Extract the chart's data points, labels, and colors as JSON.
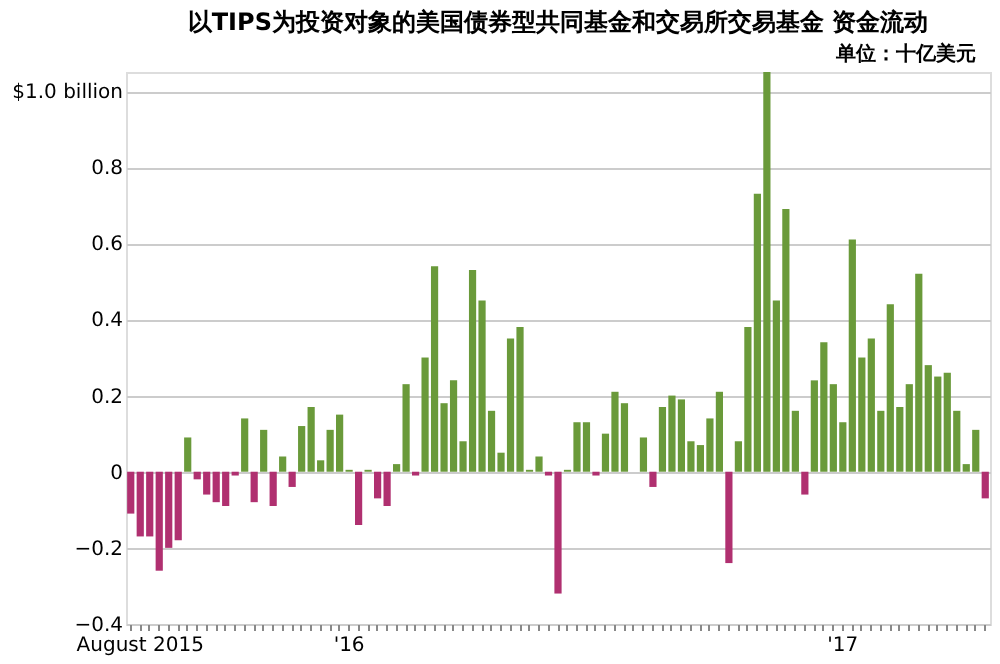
{
  "chart_data": {
    "type": "bar",
    "title": "以TIPS为投资对象的美国债券型共同基金和交易所交易基金 资金流动",
    "annotations": [
      "单位：十亿美元"
    ],
    "categories": [
      null,
      "August 2015",
      null,
      null,
      null,
      null,
      null,
      null,
      null,
      null,
      null,
      null,
      null,
      null,
      null,
      null,
      null,
      null,
      null,
      null,
      null,
      null,
      null,
      "'16",
      null,
      null,
      null,
      null,
      null,
      null,
      null,
      null,
      null,
      null,
      null,
      null,
      null,
      null,
      null,
      null,
      null,
      null,
      null,
      null,
      null,
      null,
      null,
      null,
      null,
      null,
      null,
      null,
      null,
      null,
      null,
      null,
      null,
      null,
      null,
      null,
      null,
      null,
      null,
      null,
      null,
      null,
      null,
      null,
      null,
      null,
      null,
      null,
      null,
      null,
      null,
      "'17",
      null,
      null,
      null,
      null,
      null,
      null,
      null,
      null,
      null,
      null,
      null,
      null,
      null,
      null,
      null
    ],
    "values": [
      -0.11,
      -0.17,
      -0.17,
      -0.26,
      -0.2,
      -0.18,
      0.09,
      -0.02,
      -0.06,
      -0.08,
      -0.09,
      -0.01,
      0.14,
      -0.08,
      0.11,
      -0.09,
      0.04,
      -0.04,
      0.12,
      0.17,
      0.03,
      0.11,
      0.15,
      0.005,
      -0.14,
      0.005,
      -0.07,
      -0.09,
      0.02,
      0.23,
      -0.01,
      0.3,
      0.54,
      0.18,
      0.24,
      0.08,
      0.53,
      0.45,
      0.16,
      0.05,
      0.35,
      0.38,
      0.005,
      0.04,
      -0.01,
      -0.32,
      0.005,
      0.13,
      0.13,
      -0.01,
      0.1,
      0.21,
      0.18,
      0,
      0.09,
      -0.04,
      0.17,
      0.2,
      0.19,
      0.08,
      0.07,
      0.14,
      0.21,
      -0.24,
      0.08,
      0.38,
      0.73,
      1.05,
      0.45,
      0.69,
      0.16,
      -0.06,
      0.24,
      0.34,
      0.23,
      0.13,
      0.61,
      0.3,
      0.35,
      0.16,
      0.44,
      0.17,
      0.23,
      0.52,
      0.28,
      0.25,
      0.26,
      0.16,
      0.02,
      0.11,
      -0.07
    ],
    "colors": [
      "#b03070",
      "#b03070",
      "#b03070",
      "#b03070",
      "#b03070",
      "#b03070",
      "#6a9a3a",
      "#b03070",
      "#b03070",
      "#b03070",
      "#b03070",
      "#b03070",
      "#6a9a3a",
      "#b03070",
      "#6a9a3a",
      "#b03070",
      "#6a9a3a",
      "#b03070",
      "#6a9a3a",
      "#6a9a3a",
      "#6a9a3a",
      "#6a9a3a",
      "#6a9a3a",
      "#6a9a3a",
      "#b03070",
      "#6a9a3a",
      "#b03070",
      "#b03070",
      "#6a9a3a",
      "#6a9a3a",
      "#b03070",
      "#6a9a3a",
      "#6a9a3a",
      "#6a9a3a",
      "#6a9a3a",
      "#6a9a3a",
      "#6a9a3a",
      "#6a9a3a",
      "#6a9a3a",
      "#6a9a3a",
      "#6a9a3a",
      "#6a9a3a",
      "#6a9a3a",
      "#6a9a3a",
      "#b03070",
      "#b03070",
      "#6a9a3a",
      "#6a9a3a",
      "#6a9a3a",
      "#b03070",
      "#6a9a3a",
      "#6a9a3a",
      "#6a9a3a",
      "#6a9a3a",
      "#6a9a3a",
      "#b03070",
      "#6a9a3a",
      "#6a9a3a",
      "#6a9a3a",
      "#6a9a3a",
      "#6a9a3a",
      "#6a9a3a",
      "#6a9a3a",
      "#b03070",
      "#6a9a3a",
      "#6a9a3a",
      "#6a9a3a",
      "#6a9a3a",
      "#6a9a3a",
      "#6a9a3a",
      "#6a9a3a",
      "#b03070",
      "#6a9a3a",
      "#6a9a3a",
      "#6a9a3a",
      "#6a9a3a",
      "#6a9a3a",
      "#6a9a3a",
      "#6a9a3a",
      "#6a9a3a",
      "#6a9a3a",
      "#6a9a3a",
      "#6a9a3a",
      "#6a9a3a",
      "#6a9a3a",
      "#6a9a3a",
      "#6a9a3a",
      "#6a9a3a",
      "#6a9a3a",
      "#6a9a3a",
      "#b03070"
    ],
    "ylim": [
      -0.4,
      1.05
    ],
    "yticks": [
      -0.4,
      -0.2,
      0,
      0.2,
      0.4,
      0.6,
      0.8,
      {
        "value": 1.0,
        "label": "$1.0 billion"
      }
    ],
    "grid": "y"
  }
}
